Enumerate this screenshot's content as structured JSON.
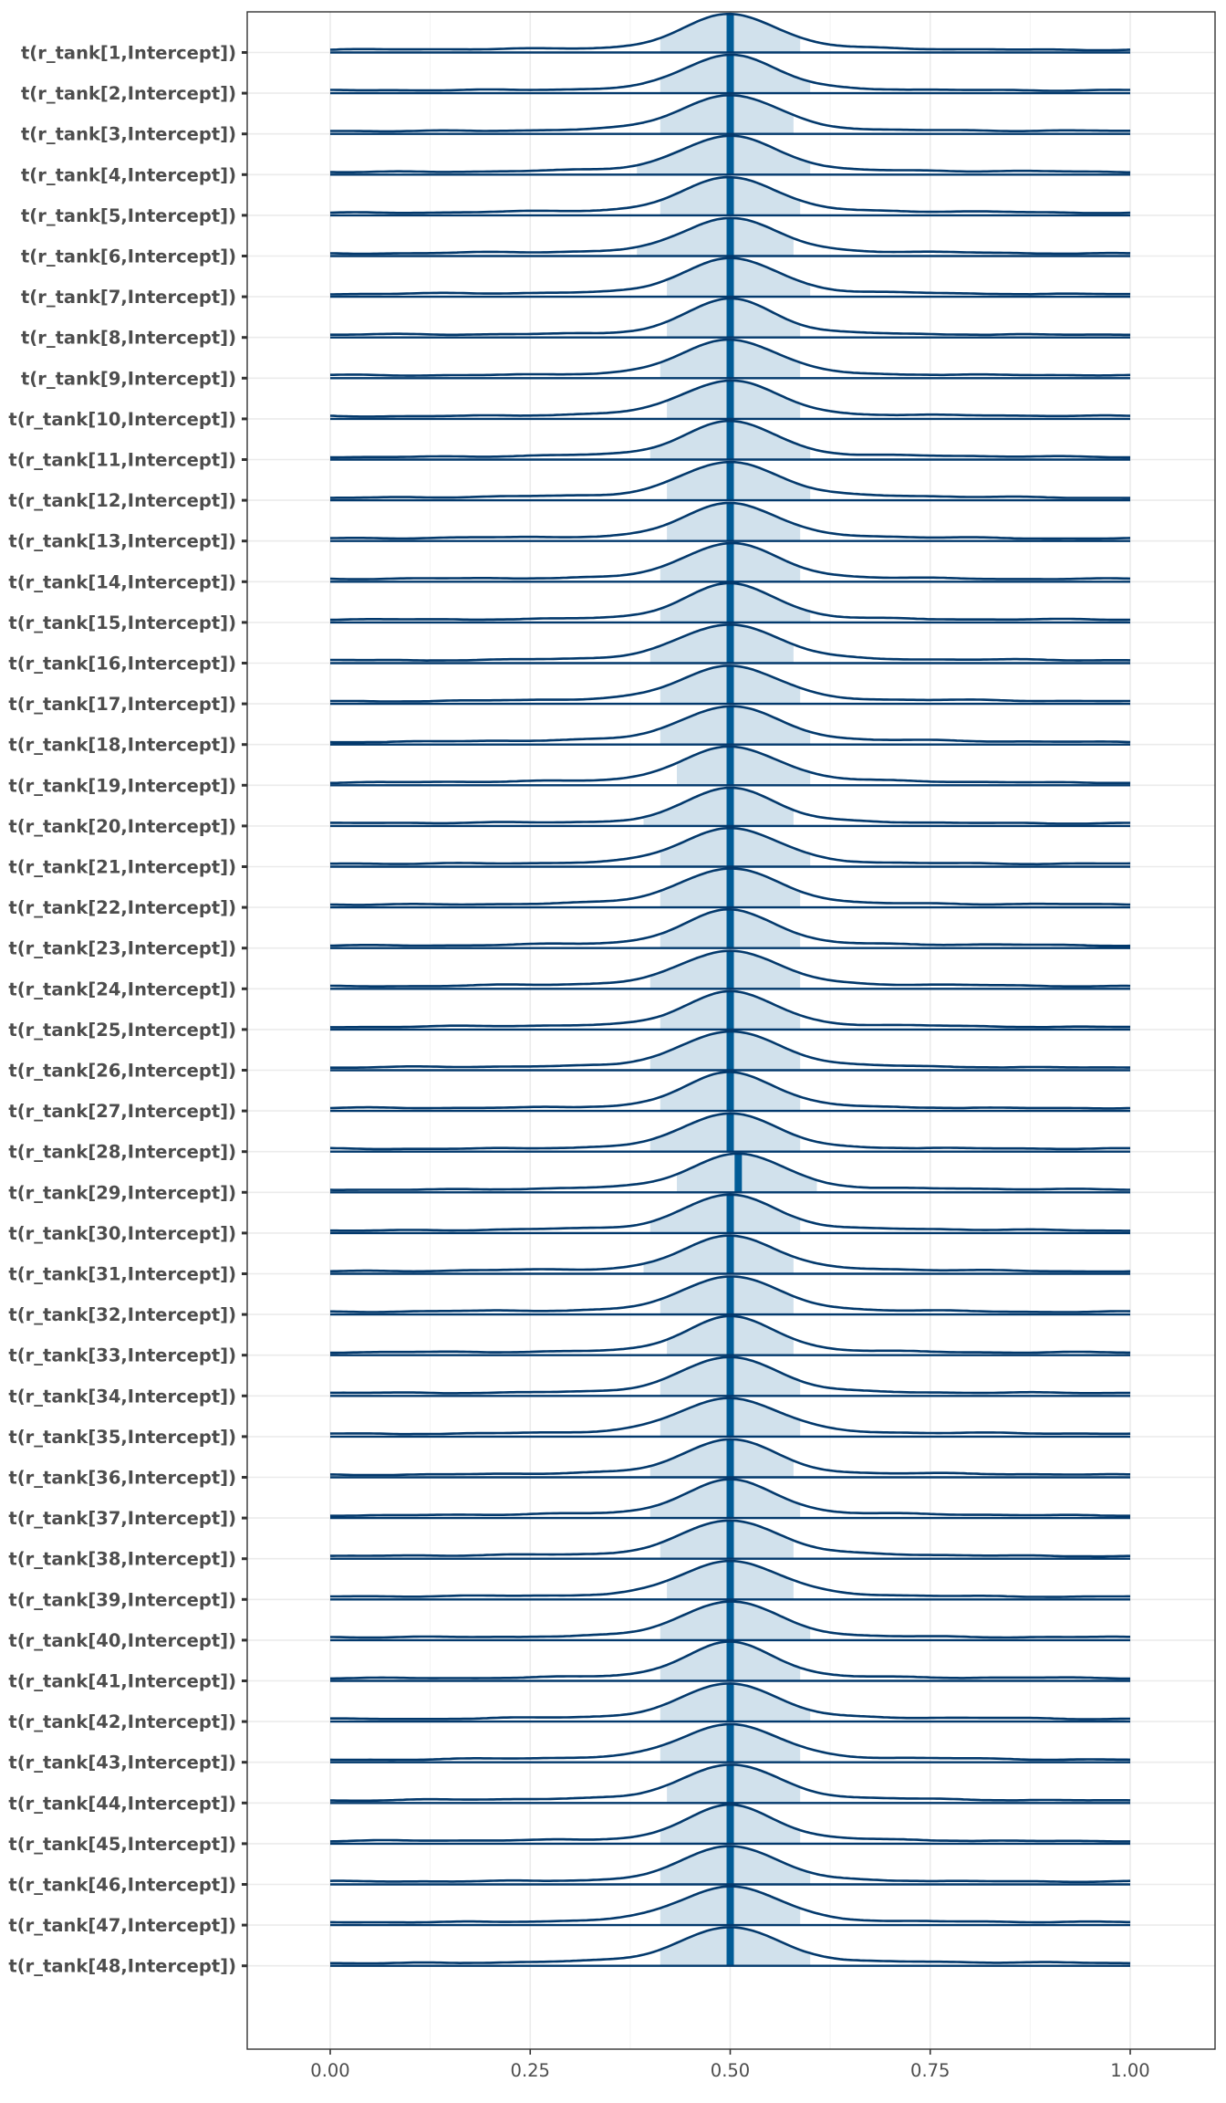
{
  "chart_data": {
    "type": "area",
    "subtype": "ridgeline-density",
    "title": "",
    "xlabel": "",
    "ylabel": "",
    "xlim": [
      -0.105,
      1.105
    ],
    "x_ticks": [
      "0.00",
      "0.25",
      "0.50",
      "0.75",
      "1.00"
    ],
    "x_tick_values": [
      0,
      0.25,
      0.5,
      0.75,
      1.0
    ],
    "grid": true,
    "legend": "none",
    "colors": {
      "line": "#03396c",
      "fill": "#d1e1ec",
      "point": "#005b96",
      "grid": "#ebebeb",
      "axis_text": "#4d4d4d"
    },
    "series": [
      {
        "label": "t(r_tank[1,Intercept])",
        "median": 0.5,
        "ci": [
          0.41,
          0.59
        ]
      },
      {
        "label": "t(r_tank[2,Intercept])",
        "median": 0.5,
        "ci": [
          0.41,
          0.6
        ]
      },
      {
        "label": "t(r_tank[3,Intercept])",
        "median": 0.5,
        "ci": [
          0.41,
          0.58
        ]
      },
      {
        "label": "t(r_tank[4,Intercept])",
        "median": 0.5,
        "ci": [
          0.38,
          0.6
        ]
      },
      {
        "label": "t(r_tank[5,Intercept])",
        "median": 0.5,
        "ci": [
          0.41,
          0.59
        ]
      },
      {
        "label": "t(r_tank[6,Intercept])",
        "median": 0.5,
        "ci": [
          0.38,
          0.58
        ]
      },
      {
        "label": "t(r_tank[7,Intercept])",
        "median": 0.5,
        "ci": [
          0.42,
          0.6
        ]
      },
      {
        "label": "t(r_tank[8,Intercept])",
        "median": 0.5,
        "ci": [
          0.42,
          0.59
        ]
      },
      {
        "label": "t(r_tank[9,Intercept])",
        "median": 0.5,
        "ci": [
          0.41,
          0.59
        ]
      },
      {
        "label": "t(r_tank[10,Intercept])",
        "median": 0.5,
        "ci": [
          0.42,
          0.59
        ]
      },
      {
        "label": "t(r_tank[11,Intercept])",
        "median": 0.5,
        "ci": [
          0.4,
          0.6
        ]
      },
      {
        "label": "t(r_tank[12,Intercept])",
        "median": 0.5,
        "ci": [
          0.42,
          0.6
        ]
      },
      {
        "label": "t(r_tank[13,Intercept])",
        "median": 0.5,
        "ci": [
          0.42,
          0.59
        ]
      },
      {
        "label": "t(r_tank[14,Intercept])",
        "median": 0.5,
        "ci": [
          0.41,
          0.59
        ]
      },
      {
        "label": "t(r_tank[15,Intercept])",
        "median": 0.5,
        "ci": [
          0.41,
          0.6
        ]
      },
      {
        "label": "t(r_tank[16,Intercept])",
        "median": 0.5,
        "ci": [
          0.4,
          0.58
        ]
      },
      {
        "label": "t(r_tank[17,Intercept])",
        "median": 0.5,
        "ci": [
          0.41,
          0.59
        ]
      },
      {
        "label": "t(r_tank[18,Intercept])",
        "median": 0.5,
        "ci": [
          0.41,
          0.6
        ]
      },
      {
        "label": "t(r_tank[19,Intercept])",
        "median": 0.5,
        "ci": [
          0.43,
          0.6
        ]
      },
      {
        "label": "t(r_tank[20,Intercept])",
        "median": 0.5,
        "ci": [
          0.39,
          0.58
        ]
      },
      {
        "label": "t(r_tank[21,Intercept])",
        "median": 0.5,
        "ci": [
          0.41,
          0.6
        ]
      },
      {
        "label": "t(r_tank[22,Intercept])",
        "median": 0.5,
        "ci": [
          0.41,
          0.59
        ]
      },
      {
        "label": "t(r_tank[23,Intercept])",
        "median": 0.5,
        "ci": [
          0.41,
          0.59
        ]
      },
      {
        "label": "t(r_tank[24,Intercept])",
        "median": 0.5,
        "ci": [
          0.4,
          0.59
        ]
      },
      {
        "label": "t(r_tank[25,Intercept])",
        "median": 0.5,
        "ci": [
          0.41,
          0.59
        ]
      },
      {
        "label": "t(r_tank[26,Intercept])",
        "median": 0.5,
        "ci": [
          0.4,
          0.59
        ]
      },
      {
        "label": "t(r_tank[27,Intercept])",
        "median": 0.5,
        "ci": [
          0.41,
          0.59
        ]
      },
      {
        "label": "t(r_tank[28,Intercept])",
        "median": 0.5,
        "ci": [
          0.4,
          0.59
        ]
      },
      {
        "label": "t(r_tank[29,Intercept])",
        "median": 0.51,
        "ci": [
          0.43,
          0.61
        ]
      },
      {
        "label": "t(r_tank[30,Intercept])",
        "median": 0.5,
        "ci": [
          0.4,
          0.59
        ]
      },
      {
        "label": "t(r_tank[31,Intercept])",
        "median": 0.5,
        "ci": [
          0.39,
          0.58
        ]
      },
      {
        "label": "t(r_tank[32,Intercept])",
        "median": 0.5,
        "ci": [
          0.41,
          0.58
        ]
      },
      {
        "label": "t(r_tank[33,Intercept])",
        "median": 0.5,
        "ci": [
          0.42,
          0.58
        ]
      },
      {
        "label": "t(r_tank[34,Intercept])",
        "median": 0.5,
        "ci": [
          0.41,
          0.59
        ]
      },
      {
        "label": "t(r_tank[35,Intercept])",
        "median": 0.5,
        "ci": [
          0.41,
          0.59
        ]
      },
      {
        "label": "t(r_tank[36,Intercept])",
        "median": 0.5,
        "ci": [
          0.4,
          0.58
        ]
      },
      {
        "label": "t(r_tank[37,Intercept])",
        "median": 0.5,
        "ci": [
          0.4,
          0.59
        ]
      },
      {
        "label": "t(r_tank[38,Intercept])",
        "median": 0.5,
        "ci": [
          0.41,
          0.58
        ]
      },
      {
        "label": "t(r_tank[39,Intercept])",
        "median": 0.5,
        "ci": [
          0.42,
          0.58
        ]
      },
      {
        "label": "t(r_tank[40,Intercept])",
        "median": 0.5,
        "ci": [
          0.41,
          0.6
        ]
      },
      {
        "label": "t(r_tank[41,Intercept])",
        "median": 0.5,
        "ci": [
          0.41,
          0.59
        ]
      },
      {
        "label": "t(r_tank[42,Intercept])",
        "median": 0.5,
        "ci": [
          0.41,
          0.6
        ]
      },
      {
        "label": "t(r_tank[43,Intercept])",
        "median": 0.5,
        "ci": [
          0.41,
          0.59
        ]
      },
      {
        "label": "t(r_tank[44,Intercept])",
        "median": 0.5,
        "ci": [
          0.42,
          0.59
        ]
      },
      {
        "label": "t(r_tank[45,Intercept])",
        "median": 0.5,
        "ci": [
          0.41,
          0.59
        ]
      },
      {
        "label": "t(r_tank[46,Intercept])",
        "median": 0.5,
        "ci": [
          0.41,
          0.6
        ]
      },
      {
        "label": "t(r_tank[47,Intercept])",
        "median": 0.5,
        "ci": [
          0.41,
          0.59
        ]
      },
      {
        "label": "t(r_tank[48,Intercept])",
        "median": 0.5,
        "ci": [
          0.41,
          0.6
        ]
      }
    ]
  }
}
